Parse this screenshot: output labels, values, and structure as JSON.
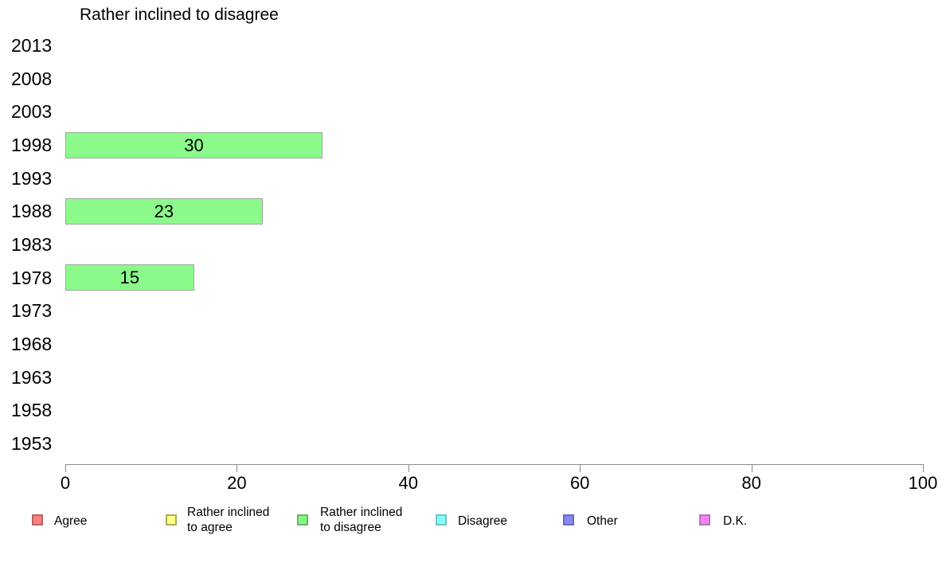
{
  "chart_data": {
    "type": "bar",
    "orientation": "horizontal",
    "title": "Rather inclined to disagree",
    "categories": [
      "2013",
      "2008",
      "2003",
      "1998",
      "1993",
      "1988",
      "1983",
      "1978",
      "1973",
      "1968",
      "1963",
      "1958",
      "1953"
    ],
    "values": [
      null,
      null,
      null,
      30,
      null,
      23,
      null,
      15,
      null,
      null,
      null,
      null,
      null
    ],
    "bar_labels": [
      "",
      "",
      "",
      "30",
      "",
      "23",
      "",
      "15",
      "",
      "",
      "",
      "",
      ""
    ],
    "xlabel": "",
    "ylabel": "",
    "xlim": [
      0,
      100
    ],
    "xticks": [
      0,
      20,
      40,
      60,
      80,
      100
    ],
    "grid": false,
    "legend_position": "bottom",
    "bar_fill_color": "#8bfa8b",
    "bar_border_color": "#9aa89a",
    "axis_color": "#8a8a8a",
    "legend": [
      {
        "id": "agree",
        "lines": [
          "Agree"
        ],
        "fill": "#f98080",
        "border": "#bb6363"
      },
      {
        "id": "rather-inclined-to-agree",
        "lines": [
          "Rather inclined",
          "to agree"
        ],
        "fill": "#ffff85",
        "border": "#abab59"
      },
      {
        "id": "rather-inclined-to-disagree",
        "lines": [
          "Rather inclined",
          "to disagree"
        ],
        "fill": "#85fa85",
        "border": "#63b863"
      },
      {
        "id": "disagree",
        "lines": [
          "Disagree"
        ],
        "fill": "#85ffff",
        "border": "#6fc3c3"
      },
      {
        "id": "other",
        "lines": [
          "Other"
        ],
        "fill": "#8787ef",
        "border": "#6b6bc4"
      },
      {
        "id": "dk",
        "lines": [
          "D.K."
        ],
        "fill": "#fb7dfb",
        "border": "#ad7bad"
      }
    ]
  }
}
